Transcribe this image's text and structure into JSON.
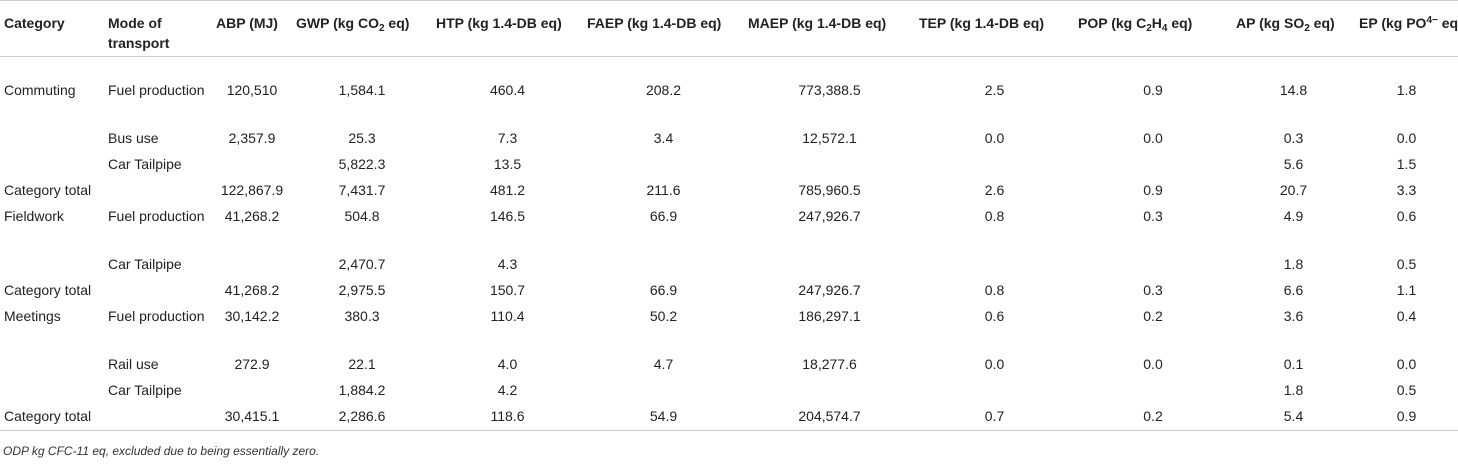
{
  "table": {
    "headers": {
      "category": "Category",
      "mode": "Mode of transport",
      "abp": "ABP (MJ)",
      "gwp": {
        "pre": "GWP (kg CO",
        "sub": "2",
        "post": " eq)"
      },
      "htp": "HTP (kg 1.4-DB eq)",
      "faep": "FAEP (kg 1.4-DB eq)",
      "maep": "MAEP (kg 1.4-DB eq)",
      "tep": "TEP (kg 1.4-DB eq)",
      "pop": {
        "pre": "POP (kg C",
        "sub1": "2",
        "mid": "H",
        "sub2": "4",
        "post": " eq)"
      },
      "ap": {
        "pre": "AP (kg SO",
        "sub": "2",
        "post": " eq)"
      },
      "ep": {
        "pre": "EP (kg PO",
        "sup": "4−",
        "post": " eq)"
      }
    },
    "rows": [
      {
        "category": "Commuting",
        "mode": "Fuel production",
        "abp": "120,510",
        "gwp": "1,584.1",
        "htp": "460.4",
        "faep": "208.2",
        "maep": "773,388.5",
        "tep": "2.5",
        "pop": "0.9",
        "ap": "14.8",
        "ep": "1.8"
      },
      {
        "category": "",
        "mode": "Bus use",
        "abp": "2,357.9",
        "gwp": "25.3",
        "htp": "7.3",
        "faep": "3.4",
        "maep": "12,572.1",
        "tep": "0.0",
        "pop": "0.0",
        "ap": "0.3",
        "ep": "0.0"
      },
      {
        "category": "",
        "mode": "Car Tailpipe",
        "abp": "",
        "gwp": "5,822.3",
        "htp": "13.5",
        "faep": "",
        "maep": "",
        "tep": "",
        "pop": "",
        "ap": "5.6",
        "ep": "1.5"
      },
      {
        "category": "Category total",
        "mode": "",
        "abp": "122,867.9",
        "gwp": "7,431.7",
        "htp": "481.2",
        "faep": "211.6",
        "maep": "785,960.5",
        "tep": "2.6",
        "pop": "0.9",
        "ap": "20.7",
        "ep": "3.3"
      },
      {
        "category": "Fieldwork",
        "mode": "Fuel production",
        "abp": "41,268.2",
        "gwp": "504.8",
        "htp": "146.5",
        "faep": "66.9",
        "maep": "247,926.7",
        "tep": "0.8",
        "pop": "0.3",
        "ap": "4.9",
        "ep": "0.6"
      },
      {
        "category": "",
        "mode": "Car Tailpipe",
        "abp": "",
        "gwp": "2,470.7",
        "htp": "4.3",
        "faep": "",
        "maep": "",
        "tep": "",
        "pop": "",
        "ap": "1.8",
        "ep": "0.5"
      },
      {
        "category": "Category total",
        "mode": "",
        "abp": "41,268.2",
        "gwp": "2,975.5",
        "htp": "150.7",
        "faep": "66.9",
        "maep": "247,926.7",
        "tep": "0.8",
        "pop": "0.3",
        "ap": "6.6",
        "ep": "1.1"
      },
      {
        "category": "Meetings",
        "mode": "Fuel production",
        "abp": "30,142.2",
        "gwp": "380.3",
        "htp": "110.4",
        "faep": "50.2",
        "maep": "186,297.1",
        "tep": "0.6",
        "pop": "0.2",
        "ap": "3.6",
        "ep": "0.4"
      },
      {
        "category": "",
        "mode": "Rail use",
        "abp": "272.9",
        "gwp": "22.1",
        "htp": "4.0",
        "faep": "4.7",
        "maep": "18,277.6",
        "tep": "0.0",
        "pop": "0.0",
        "ap": "0.1",
        "ep": "0.0"
      },
      {
        "category": "",
        "mode": "Car Tailpipe",
        "abp": "",
        "gwp": "1,884.2",
        "htp": "4.2",
        "faep": "",
        "maep": "",
        "tep": "",
        "pop": "",
        "ap": "1.8",
        "ep": "0.5"
      },
      {
        "category": "Category total",
        "mode": "",
        "abp": "30,415.1",
        "gwp": "2,286.6",
        "htp": "118.6",
        "faep": "54.9",
        "maep": "204,574.7",
        "tep": "0.7",
        "pop": "0.2",
        "ap": "5.4",
        "ep": "0.9"
      }
    ]
  },
  "footnote": "ODP kg CFC-11 eq, excluded due to being essentially zero."
}
